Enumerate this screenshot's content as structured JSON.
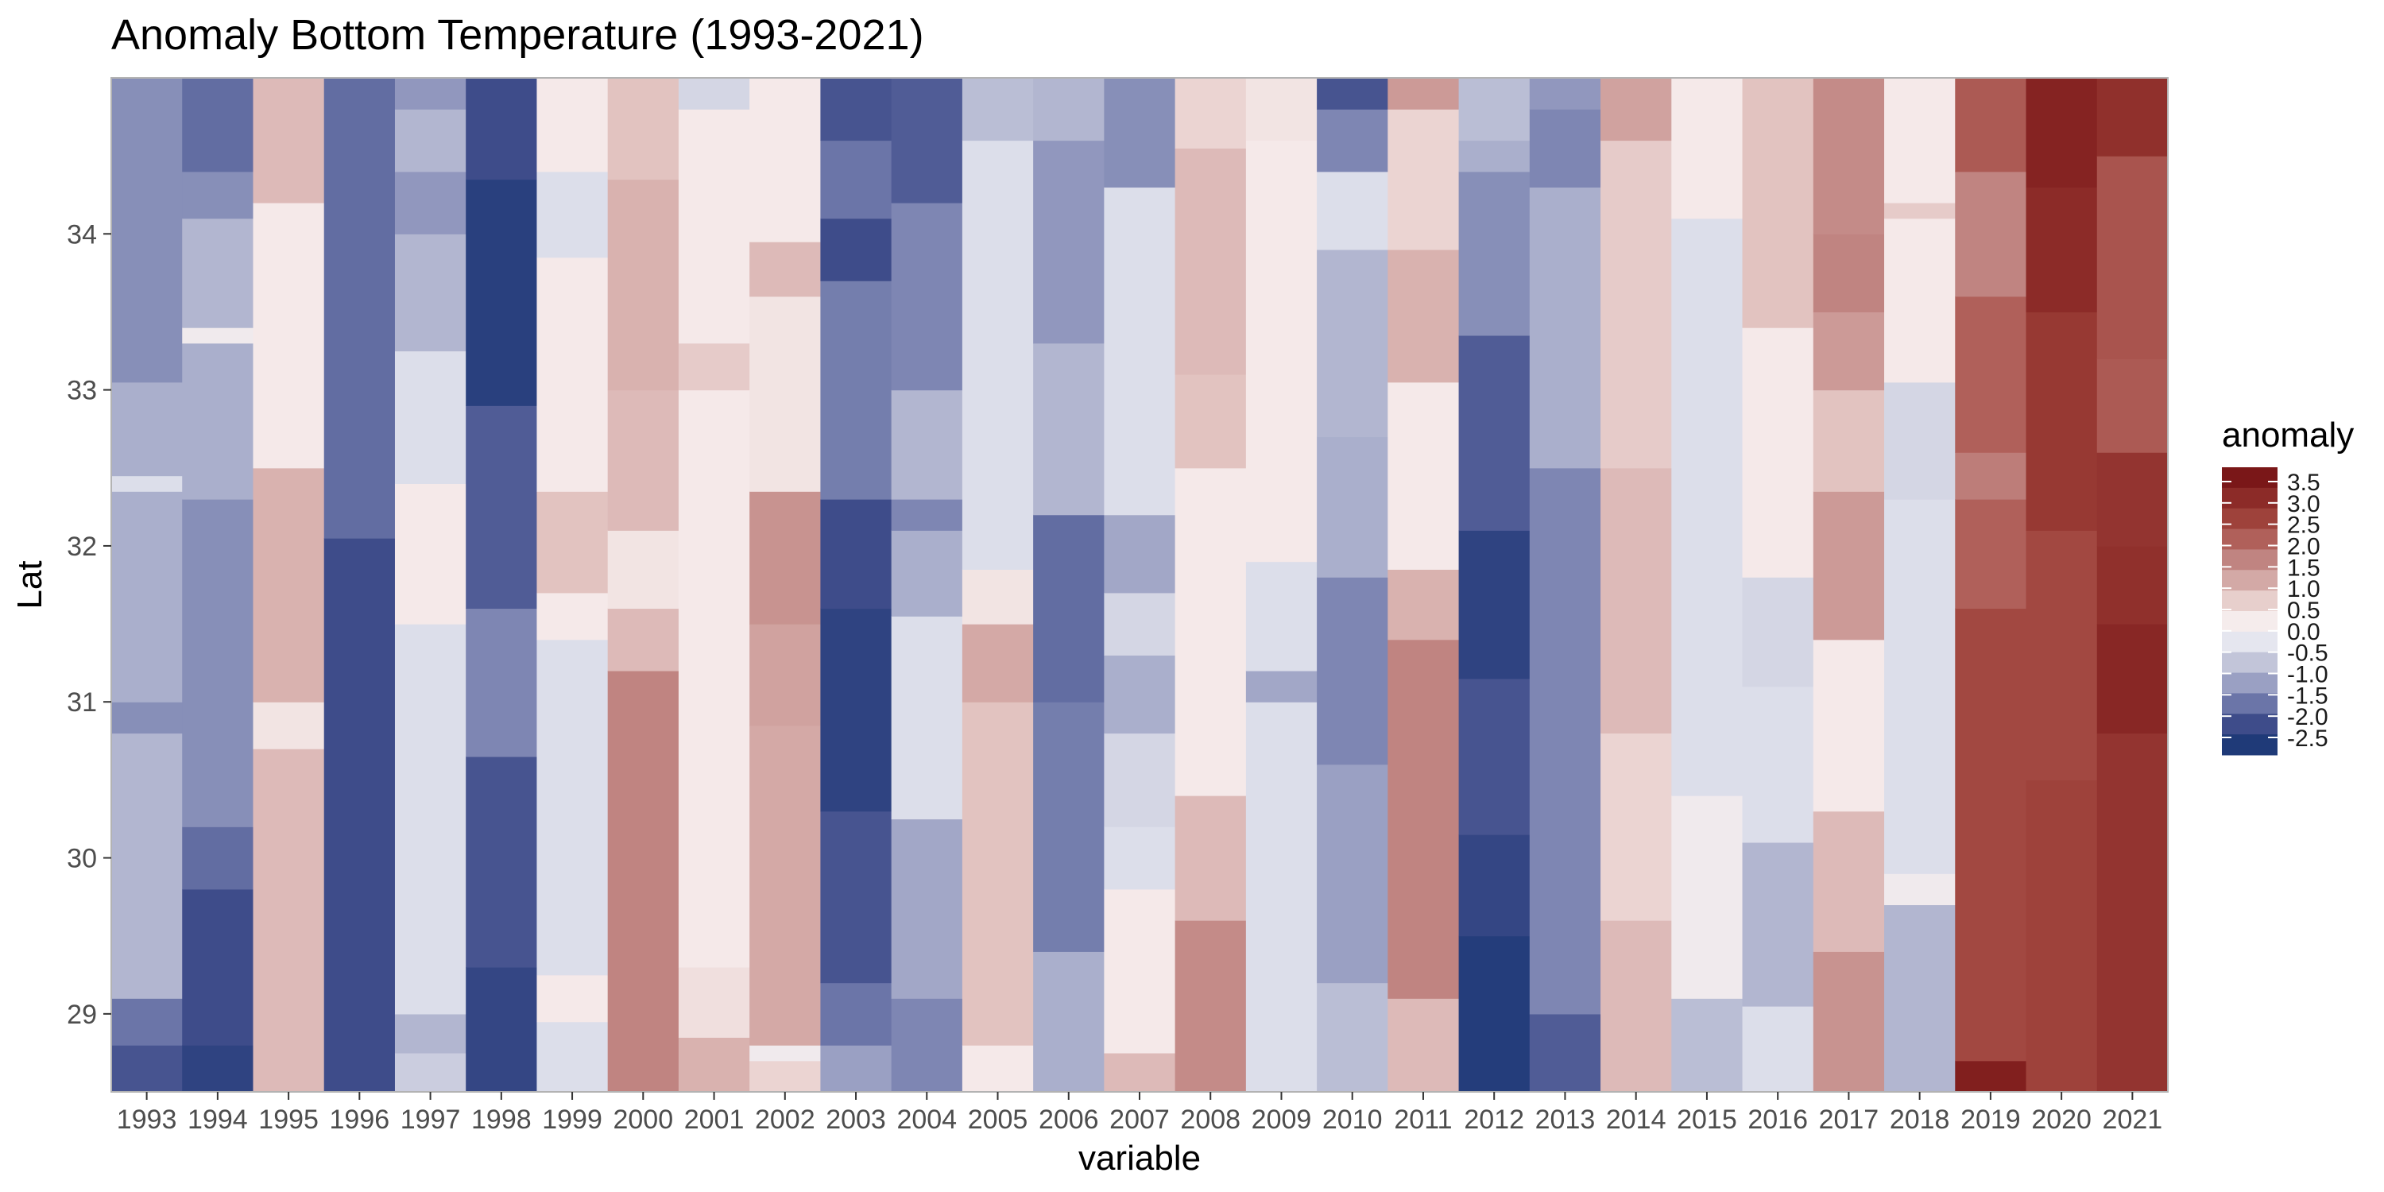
{
  "chart_data": {
    "type": "heatmap",
    "title": "Anomaly Bottom Temperature (1993-2021)",
    "xlabel": "variable",
    "ylabel": "Lat",
    "x": [
      "1993",
      "1994",
      "1995",
      "1996",
      "1997",
      "1998",
      "1999",
      "2000",
      "2001",
      "2002",
      "2003",
      "2004",
      "2005",
      "2006",
      "2007",
      "2008",
      "2009",
      "2010",
      "2011",
      "2012",
      "2013",
      "2014",
      "2015",
      "2016",
      "2017",
      "2018",
      "2019",
      "2020",
      "2021"
    ],
    "y_ticks": [
      29,
      30,
      31,
      32,
      33,
      34
    ],
    "y_tick_labels": [
      "29",
      "30",
      "31",
      "32",
      "33",
      "34"
    ],
    "ylim": [
      28.5,
      35.0
    ],
    "grid": false,
    "legend": {
      "title": "anomaly",
      "position": "right",
      "breaks": [
        3.5,
        3.0,
        2.5,
        2.0,
        1.5,
        1.0,
        0.5,
        0.0,
        -0.5,
        -1.0,
        -1.5,
        -2.0,
        -2.5
      ],
      "labels": [
        "3.5",
        "3.0",
        "2.5",
        "2.0",
        "1.5",
        "1.0",
        "0.5",
        "0.0",
        "-0.5",
        "-1.0",
        "-1.5",
        "-2.0",
        "-2.5"
      ],
      "colors": [
        "#7a1718",
        "#8c2b28",
        "#9e423b",
        "#b0605a",
        "#c08481",
        "#d3a9a6",
        "#e7cfcc",
        "#f5ecec",
        "#e5e6ef",
        "#c2c5d9",
        "#9aa0c3",
        "#6b75a8",
        "#3e4c8a",
        "#1f3a78"
      ]
    },
    "columns": [
      {
        "year": "1993",
        "segments": [
          [
            28.5,
            28.8,
            -1.9
          ],
          [
            28.8,
            29.1,
            -1.5
          ],
          [
            29.1,
            30.8,
            -0.7
          ],
          [
            30.8,
            31.0,
            -1.2
          ],
          [
            31.0,
            32.35,
            -0.8
          ],
          [
            32.35,
            32.45,
            -0.2
          ],
          [
            32.45,
            33.05,
            -0.8
          ],
          [
            33.05,
            35.0,
            -1.2
          ]
        ]
      },
      {
        "year": "1994",
        "segments": [
          [
            28.5,
            28.8,
            -2.3
          ],
          [
            28.8,
            29.8,
            -2.0
          ],
          [
            29.8,
            30.2,
            -1.6
          ],
          [
            30.2,
            32.3,
            -1.2
          ],
          [
            32.3,
            33.3,
            -0.8
          ],
          [
            33.3,
            33.4,
            0.0
          ],
          [
            33.4,
            34.1,
            -0.7
          ],
          [
            34.1,
            34.4,
            -1.2
          ],
          [
            34.4,
            35.0,
            -1.6
          ]
        ]
      },
      {
        "year": "1995",
        "segments": [
          [
            28.5,
            30.7,
            0.8
          ],
          [
            30.7,
            31.0,
            0.2
          ],
          [
            31.0,
            32.5,
            0.9
          ],
          [
            32.5,
            34.2,
            0.1
          ],
          [
            34.2,
            35.0,
            0.8
          ]
        ]
      },
      {
        "year": "1996",
        "segments": [
          [
            28.5,
            32.05,
            -2.0
          ],
          [
            32.05,
            35.0,
            -1.6
          ]
        ]
      },
      {
        "year": "1997",
        "segments": [
          [
            28.5,
            28.75,
            -0.4
          ],
          [
            28.75,
            29.0,
            -0.7
          ],
          [
            29.0,
            31.5,
            -0.2
          ],
          [
            31.5,
            32.4,
            0.1
          ],
          [
            32.4,
            33.25,
            -0.2
          ],
          [
            33.25,
            34.0,
            -0.7
          ],
          [
            34.0,
            34.4,
            -1.1
          ],
          [
            34.4,
            34.8,
            -0.7
          ],
          [
            34.8,
            35.0,
            -1.1
          ]
        ]
      },
      {
        "year": "1998",
        "segments": [
          [
            28.5,
            29.3,
            -2.2
          ],
          [
            29.3,
            30.65,
            -1.9
          ],
          [
            30.65,
            31.6,
            -1.3
          ],
          [
            31.6,
            32.9,
            -1.8
          ],
          [
            32.9,
            34.35,
            -2.4
          ],
          [
            34.35,
            35.0,
            -2.0
          ]
        ]
      },
      {
        "year": "1999",
        "segments": [
          [
            28.5,
            28.95,
            -0.2
          ],
          [
            28.95,
            29.25,
            0.1
          ],
          [
            29.25,
            31.4,
            -0.2
          ],
          [
            31.4,
            31.7,
            0.1
          ],
          [
            31.7,
            32.35,
            0.7
          ],
          [
            32.35,
            33.25,
            0.1
          ],
          [
            33.25,
            33.85,
            0.1
          ],
          [
            33.85,
            34.4,
            -0.2
          ],
          [
            34.4,
            35.0,
            0.1
          ]
        ]
      },
      {
        "year": "2000",
        "segments": [
          [
            28.5,
            31.2,
            1.5
          ],
          [
            31.2,
            31.6,
            0.8
          ],
          [
            31.6,
            32.1,
            0.2
          ],
          [
            32.1,
            33.0,
            0.8
          ],
          [
            33.0,
            34.35,
            0.9
          ],
          [
            34.35,
            35.0,
            0.7
          ]
        ]
      },
      {
        "year": "2001",
        "segments": [
          [
            28.5,
            28.85,
            0.9
          ],
          [
            28.85,
            29.3,
            0.3
          ],
          [
            29.3,
            29.7,
            0.1
          ],
          [
            29.7,
            33.0,
            0.1
          ],
          [
            33.0,
            33.3,
            0.6
          ],
          [
            33.3,
            34.8,
            0.1
          ],
          [
            34.8,
            35.0,
            -0.3
          ]
        ]
      },
      {
        "year": "2002",
        "segments": [
          [
            28.5,
            28.7,
            0.5
          ],
          [
            28.7,
            28.8,
            0.0
          ],
          [
            28.8,
            30.85,
            1.0
          ],
          [
            30.85,
            31.5,
            1.1
          ],
          [
            31.5,
            32.35,
            1.3
          ],
          [
            32.35,
            33.6,
            0.2
          ],
          [
            33.6,
            33.95,
            0.8
          ],
          [
            33.95,
            35.0,
            0.1
          ]
        ]
      },
      {
        "year": "2003",
        "segments": [
          [
            28.5,
            28.8,
            -1.0
          ],
          [
            28.8,
            29.2,
            -1.5
          ],
          [
            29.2,
            30.3,
            -1.9
          ],
          [
            30.3,
            31.6,
            -2.3
          ],
          [
            31.6,
            32.3,
            -2.0
          ],
          [
            32.3,
            33.7,
            -1.4
          ],
          [
            33.7,
            34.1,
            -2.0
          ],
          [
            34.1,
            34.6,
            -1.5
          ],
          [
            34.6,
            35.0,
            -1.9
          ]
        ]
      },
      {
        "year": "2004",
        "segments": [
          [
            28.5,
            29.1,
            -1.3
          ],
          [
            29.1,
            30.25,
            -0.9
          ],
          [
            30.25,
            31.55,
            -0.2
          ],
          [
            31.55,
            32.1,
            -0.8
          ],
          [
            32.1,
            32.3,
            -1.3
          ],
          [
            32.3,
            33.0,
            -0.7
          ],
          [
            33.0,
            34.2,
            -1.3
          ],
          [
            34.2,
            35.0,
            -1.8
          ]
        ]
      },
      {
        "year": "2005",
        "segments": [
          [
            28.5,
            28.8,
            0.1
          ],
          [
            28.8,
            31.0,
            0.7
          ],
          [
            31.0,
            31.5,
            1.0
          ],
          [
            31.5,
            31.85,
            0.2
          ],
          [
            31.85,
            34.6,
            -0.2
          ],
          [
            34.6,
            35.0,
            -0.6
          ]
        ]
      },
      {
        "year": "2006",
        "segments": [
          [
            28.5,
            29.4,
            -0.8
          ],
          [
            29.4,
            31.0,
            -1.4
          ],
          [
            31.0,
            32.2,
            -1.6
          ],
          [
            32.2,
            33.3,
            -0.7
          ],
          [
            33.3,
            34.6,
            -1.1
          ],
          [
            34.6,
            35.0,
            -0.7
          ]
        ]
      },
      {
        "year": "2007",
        "segments": [
          [
            28.5,
            28.75,
            0.8
          ],
          [
            28.75,
            29.8,
            0.1
          ],
          [
            29.8,
            30.2,
            -0.2
          ],
          [
            30.2,
            30.8,
            -0.3
          ],
          [
            30.8,
            31.3,
            -0.8
          ],
          [
            31.3,
            31.7,
            -0.3
          ],
          [
            31.7,
            32.2,
            -0.9
          ],
          [
            32.2,
            34.3,
            -0.2
          ],
          [
            34.3,
            35.0,
            -1.2
          ]
        ]
      },
      {
        "year": "2008",
        "segments": [
          [
            28.5,
            29.6,
            1.4
          ],
          [
            29.6,
            30.4,
            0.8
          ],
          [
            30.4,
            32.5,
            0.1
          ],
          [
            32.5,
            33.1,
            0.7
          ],
          [
            33.1,
            34.55,
            0.8
          ],
          [
            34.55,
            35.0,
            0.5
          ]
        ]
      },
      {
        "year": "2009",
        "segments": [
          [
            28.5,
            31.0,
            -0.2
          ],
          [
            31.0,
            31.2,
            -0.9
          ],
          [
            31.2,
            31.9,
            -0.2
          ],
          [
            31.9,
            34.6,
            0.1
          ],
          [
            34.6,
            35.0,
            0.2
          ]
        ]
      },
      {
        "year": "2010",
        "segments": [
          [
            28.5,
            29.2,
            -0.6
          ],
          [
            29.2,
            30.6,
            -1.0
          ],
          [
            30.6,
            31.8,
            -1.3
          ],
          [
            31.8,
            32.7,
            -0.8
          ],
          [
            32.7,
            33.9,
            -0.7
          ],
          [
            33.9,
            34.4,
            -0.2
          ],
          [
            34.4,
            34.8,
            -1.3
          ],
          [
            34.8,
            35.0,
            -1.9
          ]
        ]
      },
      {
        "year": "2011",
        "segments": [
          [
            28.5,
            29.1,
            0.8
          ],
          [
            29.1,
            31.4,
            1.5
          ],
          [
            31.4,
            31.85,
            0.9
          ],
          [
            31.85,
            33.05,
            0.1
          ],
          [
            33.05,
            33.9,
            0.9
          ],
          [
            33.9,
            34.8,
            0.5
          ],
          [
            34.8,
            35.0,
            1.2
          ]
        ]
      },
      {
        "year": "2012",
        "segments": [
          [
            28.5,
            29.5,
            -2.5
          ],
          [
            29.5,
            30.15,
            -2.2
          ],
          [
            30.15,
            31.15,
            -1.9
          ],
          [
            31.15,
            32.1,
            -2.3
          ],
          [
            32.1,
            33.35,
            -1.8
          ],
          [
            33.35,
            34.4,
            -1.2
          ],
          [
            34.4,
            34.6,
            -0.8
          ],
          [
            34.6,
            35.0,
            -0.6
          ]
        ]
      },
      {
        "year": "2013",
        "segments": [
          [
            28.5,
            29.0,
            -1.8
          ],
          [
            29.0,
            32.5,
            -1.3
          ],
          [
            32.5,
            34.3,
            -0.8
          ],
          [
            34.3,
            34.8,
            -1.3
          ],
          [
            34.8,
            35.0,
            -1.1
          ]
        ]
      },
      {
        "year": "2014",
        "segments": [
          [
            28.5,
            29.6,
            0.8
          ],
          [
            29.6,
            30.8,
            0.5
          ],
          [
            30.8,
            32.5,
            0.8
          ],
          [
            32.5,
            34.6,
            0.6
          ],
          [
            34.6,
            35.0,
            1.1
          ]
        ]
      },
      {
        "year": "2015",
        "segments": [
          [
            28.5,
            29.1,
            -0.6
          ],
          [
            29.1,
            30.4,
            0.0
          ],
          [
            30.4,
            31.2,
            -0.2
          ],
          [
            31.2,
            34.1,
            -0.2
          ],
          [
            34.1,
            35.0,
            0.1
          ]
        ]
      },
      {
        "year": "2016",
        "segments": [
          [
            28.5,
            29.05,
            -0.2
          ],
          [
            29.05,
            30.1,
            -0.7
          ],
          [
            30.1,
            31.1,
            -0.2
          ],
          [
            31.1,
            31.8,
            -0.3
          ],
          [
            31.8,
            32.6,
            0.1
          ],
          [
            32.6,
            33.4,
            0.1
          ],
          [
            33.4,
            35.0,
            0.7
          ]
        ]
      },
      {
        "year": "2017",
        "segments": [
          [
            28.5,
            29.4,
            1.3
          ],
          [
            29.4,
            30.3,
            0.8
          ],
          [
            30.3,
            31.4,
            0.1
          ],
          [
            31.4,
            32.35,
            1.2
          ],
          [
            32.35,
            33.0,
            0.7
          ],
          [
            33.0,
            33.5,
            1.2
          ],
          [
            33.5,
            34.0,
            1.5
          ],
          [
            34.0,
            35.0,
            1.4
          ]
        ]
      },
      {
        "year": "2018",
        "segments": [
          [
            28.5,
            29.7,
            -0.7
          ],
          [
            29.7,
            29.9,
            0.0
          ],
          [
            29.9,
            32.3,
            -0.2
          ],
          [
            32.3,
            33.05,
            -0.3
          ],
          [
            33.05,
            34.1,
            0.1
          ],
          [
            34.1,
            34.2,
            0.6
          ],
          [
            34.2,
            35.0,
            0.1
          ]
        ]
      },
      {
        "year": "2019",
        "segments": [
          [
            28.5,
            28.7,
            3.3
          ],
          [
            28.7,
            31.6,
            2.4
          ],
          [
            31.6,
            32.3,
            2.0
          ],
          [
            32.3,
            32.6,
            1.6
          ],
          [
            32.6,
            33.6,
            2.0
          ],
          [
            33.6,
            34.4,
            1.5
          ],
          [
            34.4,
            35.0,
            2.1
          ]
        ]
      },
      {
        "year": "2020",
        "segments": [
          [
            28.5,
            30.5,
            2.5
          ],
          [
            30.5,
            32.1,
            2.4
          ],
          [
            32.1,
            33.5,
            2.7
          ],
          [
            33.5,
            34.3,
            3.0
          ],
          [
            34.3,
            35.0,
            3.2
          ]
        ]
      },
      {
        "year": "2021",
        "segments": [
          [
            28.5,
            30.8,
            2.8
          ],
          [
            30.8,
            31.5,
            3.1
          ],
          [
            31.5,
            32.0,
            2.9
          ],
          [
            32.0,
            32.6,
            2.8
          ],
          [
            32.6,
            33.2,
            2.1
          ],
          [
            33.2,
            34.5,
            2.2
          ],
          [
            34.5,
            35.0,
            2.9
          ]
        ]
      }
    ]
  }
}
